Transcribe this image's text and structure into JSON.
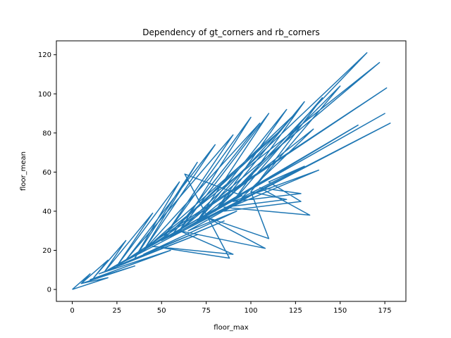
{
  "chart_data": {
    "type": "line",
    "title": "Dependency of gt_corners and rb_corners",
    "xlabel": "floor_max",
    "ylabel": "floor_mean",
    "xlim": [
      -8.9,
      186.8
    ],
    "ylim": [
      -6.1,
      127.1
    ],
    "xticks": [
      0,
      25,
      50,
      75,
      100,
      125,
      150,
      175
    ],
    "yticks": [
      0,
      20,
      40,
      60,
      80,
      100,
      120
    ],
    "grid": false,
    "legend": "none",
    "colors": {
      "series": "#1f77b4"
    },
    "series": [
      {
        "x": [
          0,
          10,
          5,
          20,
          12,
          30,
          18,
          45,
          25,
          60,
          35,
          70,
          40,
          80,
          30,
          90,
          50,
          100,
          60,
          110,
          70,
          120,
          80,
          130,
          90,
          140,
          100,
          150,
          80,
          165,
          60,
          172,
          40,
          176,
          30,
          175,
          20,
          178,
          50,
          160,
          70,
          138,
          90,
          128,
          105,
          133,
          85,
          120,
          100,
          110,
          75,
          108,
          60,
          90,
          45,
          88,
          63,
          95,
          55,
          105,
          40,
          115,
          50,
          125,
          70,
          135,
          95,
          130,
          110,
          128,
          85,
          100,
          65,
          92,
          40,
          85,
          25,
          70,
          15,
          55,
          10,
          35,
          5,
          20,
          0
        ],
        "y": [
          0,
          8,
          3,
          15,
          6,
          25,
          9,
          39,
          12,
          55,
          16,
          65,
          20,
          74,
          15,
          79,
          25,
          88,
          30,
          90,
          35,
          92,
          40,
          96,
          45,
          98,
          50,
          104,
          40,
          121,
          30,
          116,
          20,
          103,
          15,
          90,
          10,
          85,
          25,
          84,
          35,
          61,
          45,
          49,
          52,
          38,
          42,
          46,
          50,
          26,
          37,
          21,
          30,
          18,
          22,
          16,
          59,
          48,
          27,
          85,
          20,
          80,
          25,
          90,
          35,
          82,
          47,
          63,
          55,
          45,
          40,
          48,
          30,
          40,
          18,
          35,
          12,
          28,
          8,
          20,
          5,
          12,
          3,
          6,
          0
        ]
      }
    ]
  }
}
